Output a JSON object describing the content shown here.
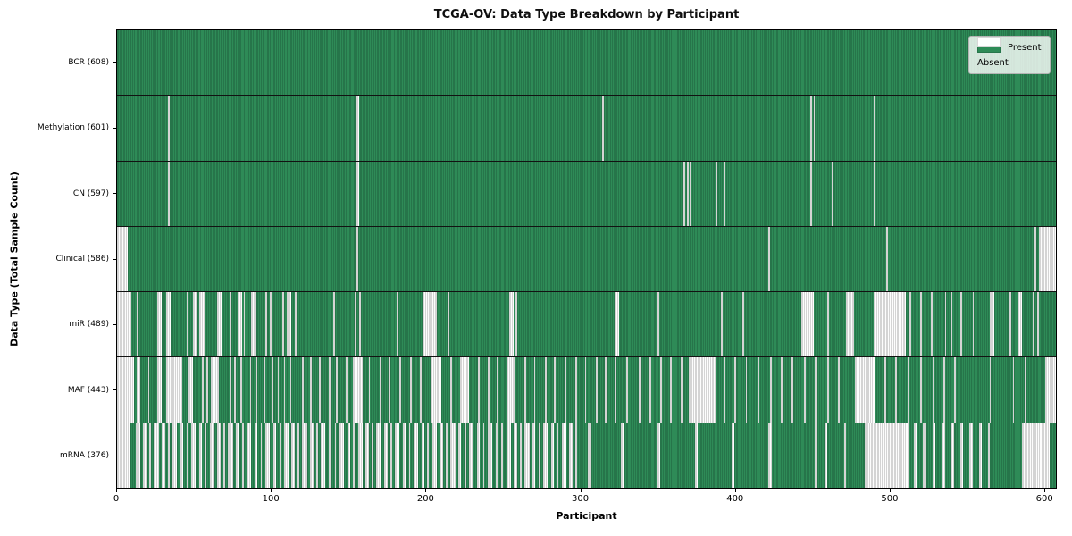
{
  "figure": {
    "title": "TCGA-OV: Data Type Breakdown by Participant",
    "xlabel": "Participant",
    "ylabel": "Data Type (Total Sample Count)"
  },
  "colors": {
    "present": "#2e8b57",
    "present_edge": "#1d5f3c",
    "absent": "#ffffff",
    "absent_edge": "#ababab",
    "axis": "#000000",
    "legend_background": "rgba(255,255,255,0.8)"
  },
  "chart_data": {
    "type": "heatmap",
    "title": "TCGA-OV: Data Type Breakdown by Participant",
    "xlabel": "Participant",
    "ylabel": "Data Type (Total Sample Count)",
    "x_range": [
      0,
      608
    ],
    "x_ticks": [
      0,
      100,
      200,
      300,
      400,
      500,
      600
    ],
    "grid": false,
    "legend_position": "upper right",
    "legend_entries": [
      "Present",
      "Absent"
    ],
    "value_encoding": {
      "present": "green bar",
      "absent": "white gap"
    },
    "rows": [
      {
        "key": "bcr",
        "label": "BCR (608)",
        "data_type": "BCR",
        "present_count": 608,
        "absent_count": 0,
        "absent_ranges": []
      },
      {
        "key": "methylation",
        "label": "Methylation (601)",
        "data_type": "Methylation",
        "present_count": 601,
        "absent_count": 7,
        "absent_ranges": [
          [
            33,
            33
          ],
          [
            155,
            156
          ],
          [
            314,
            314
          ],
          [
            449,
            449
          ],
          [
            451,
            451
          ],
          [
            490,
            490
          ]
        ]
      },
      {
        "key": "cn",
        "label": "CN (597)",
        "data_type": "CN",
        "present_count": 597,
        "absent_count": 11,
        "absent_ranges": [
          [
            33,
            33
          ],
          [
            155,
            156
          ],
          [
            367,
            367
          ],
          [
            369,
            369
          ],
          [
            371,
            371
          ],
          [
            388,
            388
          ],
          [
            393,
            393
          ],
          [
            449,
            449
          ],
          [
            463,
            463
          ],
          [
            490,
            490
          ]
        ]
      },
      {
        "key": "clinical",
        "label": "Clinical (586)",
        "data_type": "Clinical",
        "present_count": 586,
        "absent_count": 22,
        "absent_ranges": [
          [
            0,
            6
          ],
          [
            155,
            155
          ],
          [
            422,
            422
          ],
          [
            498,
            498
          ],
          [
            594,
            594
          ],
          [
            597,
            607
          ]
        ]
      },
      {
        "key": "mir",
        "label": "miR (489)",
        "data_type": "miR",
        "present_count": 489,
        "absent_count": 119,
        "absent_ranges": [
          [
            0,
            8
          ],
          [
            13,
            13
          ],
          [
            26,
            28
          ],
          [
            32,
            34
          ],
          [
            45,
            45
          ],
          [
            49,
            51
          ],
          [
            53,
            56
          ],
          [
            65,
            67
          ],
          [
            73,
            73
          ],
          [
            78,
            80
          ],
          [
            82,
            82
          ],
          [
            87,
            89
          ],
          [
            96,
            96
          ],
          [
            99,
            99
          ],
          [
            107,
            107
          ],
          [
            110,
            112
          ],
          [
            115,
            115
          ],
          [
            127,
            127
          ],
          [
            140,
            140
          ],
          [
            154,
            154
          ],
          [
            157,
            157
          ],
          [
            181,
            181
          ],
          [
            198,
            206
          ],
          [
            214,
            214
          ],
          [
            230,
            230
          ],
          [
            254,
            256
          ],
          [
            258,
            258
          ],
          [
            322,
            324
          ],
          [
            350,
            350
          ],
          [
            391,
            391
          ],
          [
            405,
            405
          ],
          [
            443,
            450
          ],
          [
            460,
            460
          ],
          [
            472,
            476
          ],
          [
            490,
            510
          ],
          [
            513,
            513
          ],
          [
            520,
            520
          ],
          [
            527,
            527
          ],
          [
            536,
            536
          ],
          [
            540,
            540
          ],
          [
            546,
            546
          ],
          [
            554,
            554
          ],
          [
            565,
            567
          ],
          [
            578,
            578
          ],
          [
            583,
            585
          ],
          [
            593,
            593
          ],
          [
            596,
            596
          ]
        ]
      },
      {
        "key": "maf",
        "label": "MAF (443)",
        "data_type": "MAF",
        "present_count": 443,
        "absent_count": 165,
        "absent_ranges": [
          [
            0,
            10
          ],
          [
            13,
            14
          ],
          [
            20,
            20
          ],
          [
            26,
            28
          ],
          [
            32,
            41
          ],
          [
            46,
            48
          ],
          [
            55,
            55
          ],
          [
            58,
            58
          ],
          [
            61,
            65
          ],
          [
            73,
            73
          ],
          [
            76,
            76
          ],
          [
            80,
            80
          ],
          [
            86,
            86
          ],
          [
            90,
            90
          ],
          [
            95,
            95
          ],
          [
            100,
            100
          ],
          [
            104,
            104
          ],
          [
            108,
            108
          ],
          [
            112,
            112
          ],
          [
            120,
            120
          ],
          [
            125,
            125
          ],
          [
            131,
            131
          ],
          [
            137,
            137
          ],
          [
            142,
            142
          ],
          [
            148,
            148
          ],
          [
            153,
            158
          ],
          [
            163,
            163
          ],
          [
            170,
            170
          ],
          [
            176,
            176
          ],
          [
            183,
            183
          ],
          [
            190,
            190
          ],
          [
            196,
            196
          ],
          [
            203,
            209
          ],
          [
            216,
            216
          ],
          [
            222,
            227
          ],
          [
            234,
            234
          ],
          [
            240,
            240
          ],
          [
            246,
            246
          ],
          [
            252,
            257
          ],
          [
            264,
            264
          ],
          [
            270,
            270
          ],
          [
            277,
            277
          ],
          [
            283,
            283
          ],
          [
            290,
            290
          ],
          [
            297,
            297
          ],
          [
            303,
            303
          ],
          [
            310,
            310
          ],
          [
            316,
            316
          ],
          [
            322,
            322
          ],
          [
            330,
            330
          ],
          [
            338,
            338
          ],
          [
            345,
            345
          ],
          [
            352,
            352
          ],
          [
            358,
            358
          ],
          [
            365,
            365
          ],
          [
            370,
            387
          ],
          [
            393,
            393
          ],
          [
            400,
            400
          ],
          [
            407,
            407
          ],
          [
            415,
            415
          ],
          [
            423,
            423
          ],
          [
            430,
            430
          ],
          [
            437,
            437
          ],
          [
            445,
            445
          ],
          [
            452,
            452
          ],
          [
            460,
            460
          ],
          [
            467,
            467
          ],
          [
            478,
            490
          ],
          [
            497,
            497
          ],
          [
            504,
            504
          ],
          [
            512,
            512
          ],
          [
            520,
            520
          ],
          [
            528,
            528
          ],
          [
            535,
            535
          ],
          [
            542,
            542
          ],
          [
            550,
            550
          ],
          [
            565,
            565
          ],
          [
            572,
            572
          ],
          [
            580,
            580
          ],
          [
            588,
            588
          ],
          [
            601,
            607
          ]
        ]
      },
      {
        "key": "mrna",
        "label": "mRNA (376)",
        "data_type": "mRNA",
        "present_count": 376,
        "absent_count": 232,
        "absent_ranges": [
          [
            0,
            7
          ],
          [
            12,
            14
          ],
          [
            17,
            18
          ],
          [
            21,
            21
          ],
          [
            24,
            26
          ],
          [
            29,
            30
          ],
          [
            33,
            33
          ],
          [
            36,
            38
          ],
          [
            41,
            42
          ],
          [
            45,
            45
          ],
          [
            48,
            50
          ],
          [
            53,
            54
          ],
          [
            57,
            57
          ],
          [
            60,
            62
          ],
          [
            65,
            66
          ],
          [
            69,
            69
          ],
          [
            72,
            74
          ],
          [
            77,
            78
          ],
          [
            81,
            81
          ],
          [
            84,
            86
          ],
          [
            89,
            90
          ],
          [
            93,
            93
          ],
          [
            96,
            98
          ],
          [
            101,
            102
          ],
          [
            105,
            105
          ],
          [
            108,
            110
          ],
          [
            113,
            114
          ],
          [
            117,
            117
          ],
          [
            120,
            122
          ],
          [
            125,
            126
          ],
          [
            129,
            129
          ],
          [
            132,
            134
          ],
          [
            137,
            138
          ],
          [
            141,
            141
          ],
          [
            144,
            146
          ],
          [
            149,
            150
          ],
          [
            153,
            153
          ],
          [
            156,
            158
          ],
          [
            161,
            162
          ],
          [
            165,
            165
          ],
          [
            168,
            170
          ],
          [
            173,
            174
          ],
          [
            177,
            177
          ],
          [
            180,
            182
          ],
          [
            185,
            186
          ],
          [
            189,
            189
          ],
          [
            192,
            194
          ],
          [
            197,
            198
          ],
          [
            201,
            201
          ],
          [
            204,
            206
          ],
          [
            209,
            210
          ],
          [
            213,
            213
          ],
          [
            216,
            218
          ],
          [
            221,
            222
          ],
          [
            225,
            225
          ],
          [
            228,
            230
          ],
          [
            233,
            234
          ],
          [
            237,
            237
          ],
          [
            240,
            242
          ],
          [
            245,
            246
          ],
          [
            249,
            249
          ],
          [
            252,
            254
          ],
          [
            257,
            258
          ],
          [
            261,
            261
          ],
          [
            264,
            266
          ],
          [
            269,
            270
          ],
          [
            273,
            273
          ],
          [
            276,
            278
          ],
          [
            281,
            282
          ],
          [
            285,
            285
          ],
          [
            288,
            290
          ],
          [
            293,
            294
          ],
          [
            297,
            297
          ],
          [
            305,
            306
          ],
          [
            326,
            327
          ],
          [
            350,
            351
          ],
          [
            374,
            375
          ],
          [
            398,
            399
          ],
          [
            422,
            423
          ],
          [
            452,
            452
          ],
          [
            458,
            459
          ],
          [
            471,
            471
          ],
          [
            484,
            512
          ],
          [
            516,
            517
          ],
          [
            522,
            523
          ],
          [
            528,
            529
          ],
          [
            534,
            535
          ],
          [
            540,
            541
          ],
          [
            546,
            547
          ],
          [
            552,
            553
          ],
          [
            558,
            559
          ],
          [
            564,
            564
          ],
          [
            586,
            603
          ]
        ]
      }
    ]
  }
}
